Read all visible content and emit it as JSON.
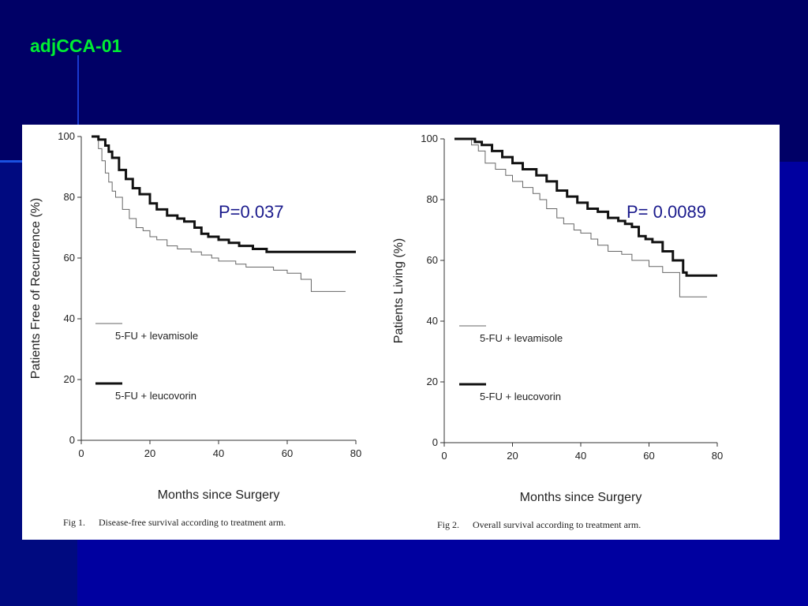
{
  "slide": {
    "title": "adjCCA-01",
    "colors": {
      "background": "#000066",
      "title": "#00ee33",
      "p_value": "#1a1a8c"
    }
  },
  "chart_data": [
    {
      "type": "line",
      "figure": "Fig 1.",
      "caption": "Disease-free survival according to treatment arm.",
      "xlabel": "Months since Surgery",
      "ylabel": "Patients Free of Recurrence (%)",
      "xlim": [
        0,
        80
      ],
      "ylim": [
        0,
        100
      ],
      "xticks": [
        0,
        20,
        40,
        60,
        80
      ],
      "yticks": [
        0,
        20,
        40,
        60,
        80,
        100
      ],
      "annotation": "P=0.037",
      "legend_position": "bottom-left",
      "series": [
        {
          "name": "5-FU + levamisole",
          "style": "thin",
          "x": [
            3,
            5,
            6,
            7,
            8,
            9,
            10,
            12,
            14,
            16,
            18,
            20,
            22,
            25,
            28,
            30,
            32,
            35,
            38,
            40,
            42,
            45,
            48,
            52,
            56,
            60,
            62,
            64,
            66,
            67,
            72,
            77
          ],
          "y": [
            100,
            96,
            92,
            88,
            85,
            82,
            80,
            76,
            73,
            70,
            69,
            67,
            66,
            64,
            63,
            63,
            62,
            61,
            60,
            59,
            59,
            58,
            57,
            57,
            56,
            55,
            55,
            53,
            53,
            49,
            49,
            49
          ]
        },
        {
          "name": "5-FU + leucovorin",
          "style": "thick",
          "x": [
            3,
            5,
            7,
            8,
            9,
            11,
            13,
            15,
            17,
            20,
            22,
            25,
            28,
            30,
            33,
            35,
            37,
            40,
            43,
            46,
            50,
            54,
            58,
            65,
            72,
            80
          ],
          "y": [
            100,
            99,
            97,
            95,
            93,
            89,
            86,
            83,
            81,
            78,
            76,
            74,
            73,
            72,
            70,
            68,
            67,
            66,
            65,
            64,
            63,
            62,
            62,
            62,
            62,
            62
          ]
        }
      ]
    },
    {
      "type": "line",
      "figure": "Fig 2.",
      "caption": "Overall survival according to treatment arm.",
      "xlabel": "Months since Surgery",
      "ylabel": "Patients Living (%)",
      "xlim": [
        0,
        80
      ],
      "ylim": [
        0,
        100
      ],
      "xticks": [
        0,
        20,
        40,
        60,
        80
      ],
      "yticks": [
        0,
        20,
        40,
        60,
        80,
        100
      ],
      "annotation": "P= 0.0089",
      "legend_position": "bottom-left",
      "series": [
        {
          "name": "5-FU + levamisole",
          "style": "thin",
          "x": [
            3,
            8,
            10,
            12,
            15,
            18,
            20,
            23,
            26,
            28,
            30,
            33,
            35,
            38,
            40,
            43,
            45,
            48,
            52,
            55,
            58,
            60,
            64,
            68,
            69,
            72,
            77
          ],
          "y": [
            100,
            98,
            96,
            92,
            90,
            88,
            86,
            84,
            82,
            80,
            77,
            74,
            72,
            70,
            69,
            67,
            65,
            63,
            62,
            60,
            60,
            58,
            56,
            56,
            48,
            48,
            48
          ]
        },
        {
          "name": "5-FU + leucovorin",
          "style": "thick",
          "x": [
            3,
            9,
            11,
            14,
            17,
            20,
            23,
            27,
            30,
            33,
            36,
            39,
            42,
            45,
            48,
            51,
            53,
            55,
            57,
            59,
            61,
            64,
            67,
            70,
            71,
            80
          ],
          "y": [
            100,
            99,
            98,
            96,
            94,
            92,
            90,
            88,
            86,
            83,
            81,
            79,
            77,
            76,
            74,
            73,
            72,
            71,
            68,
            67,
            66,
            63,
            60,
            56,
            55,
            55
          ]
        }
      ]
    }
  ]
}
